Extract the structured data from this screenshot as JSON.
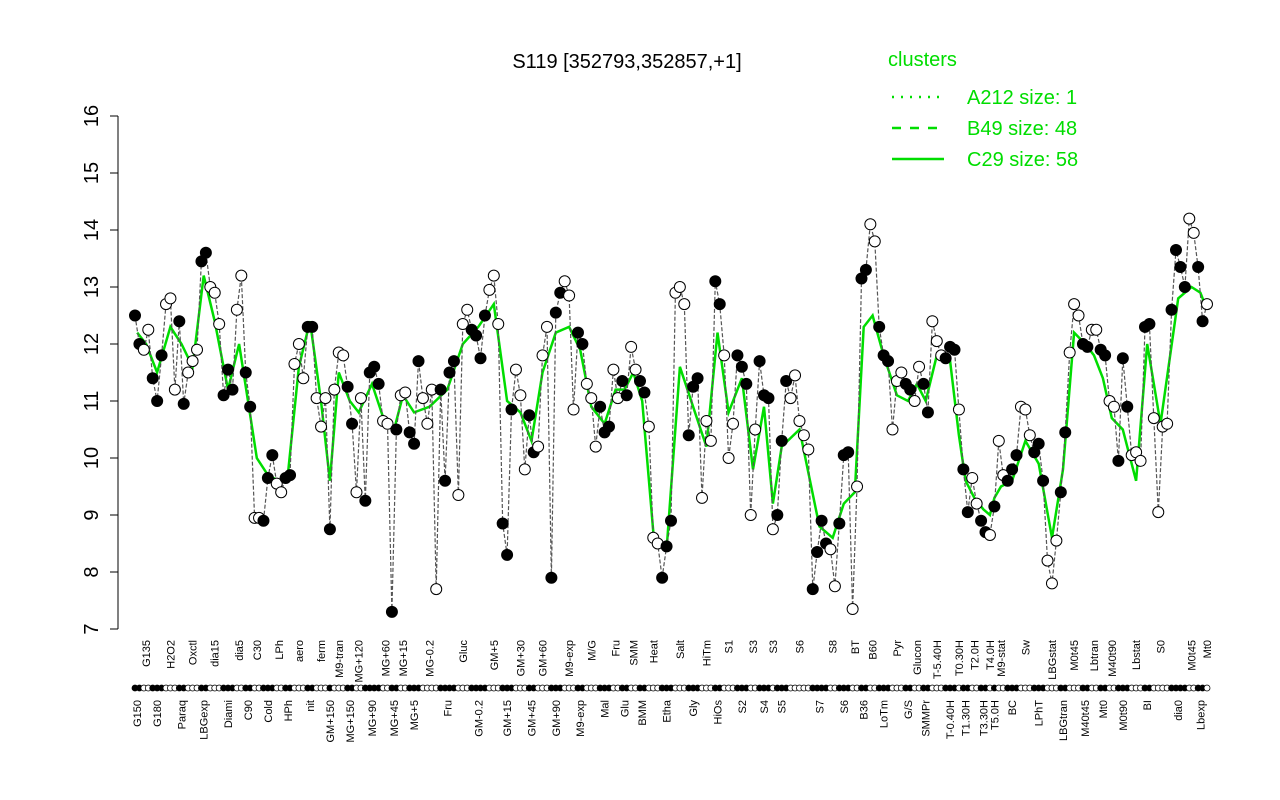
{
  "chart_data": {
    "type": "line",
    "title": "S119 [352793,352857,+1]",
    "ylim": [
      7,
      16
    ],
    "yticks": [
      7,
      8,
      9,
      10,
      11,
      12,
      13,
      14,
      15,
      16
    ],
    "marker_colors": [
      "#000000",
      "#ffffff"
    ],
    "line_color": "#00dd00",
    "legend": {
      "title": "clusters",
      "position": "top-right",
      "entries": [
        {
          "label": "A212 size: 1",
          "style": "dotted"
        },
        {
          "label": "B49 size: 48",
          "style": "dashed"
        },
        {
          "label": "C29 size: 58",
          "style": "solid"
        }
      ]
    },
    "groups": [
      {
        "label": "G150",
        "values": [
          12.5,
          12.0
        ],
        "level": 12.2
      },
      {
        "label": "G135",
        "values": [
          11.9,
          12.25
        ],
        "level": 12.0
      },
      {
        "label": "G180",
        "values": [
          11.4,
          11.0,
          11.8
        ],
        "level": 11.5
      },
      {
        "label": "H2O2",
        "values": [
          12.7,
          12.8,
          11.2
        ],
        "level": 12.3
      },
      {
        "label": "Paraq",
        "values": [
          12.4,
          10.95
        ],
        "level": 12.0
      },
      {
        "label": "Oxctl",
        "values": [
          11.5,
          11.7,
          11.9
        ],
        "level": 11.6
      },
      {
        "label": "LBGexp",
        "values": [
          13.45,
          13.6
        ],
        "level": 13.2
      },
      {
        "label": "dia15",
        "values": [
          13.0,
          12.9,
          12.35
        ],
        "level": 12.4
      },
      {
        "label": "Diami",
        "values": [
          11.1,
          11.55,
          11.2
        ],
        "level": 11.2
      },
      {
        "label": "dia5",
        "values": [
          12.6,
          13.2
        ],
        "level": 12.0
      },
      {
        "label": "C90",
        "values": [
          11.5,
          10.9
        ],
        "level": 11.0
      },
      {
        "label": "C30",
        "values": [
          8.95,
          8.95
        ],
        "level": 10.0
      },
      {
        "label": "Cold",
        "values": [
          8.9,
          9.65,
          10.05
        ],
        "level": 9.7
      },
      {
        "label": "LPh",
        "values": [
          9.55,
          9.4
        ],
        "level": 9.6
      },
      {
        "label": "HPh",
        "values": [
          9.65,
          9.7
        ],
        "level": 9.7
      },
      {
        "label": "aero",
        "values": [
          11.65,
          12.0,
          11.4
        ],
        "level": 11.6
      },
      {
        "label": "nit",
        "values": [
          12.3,
          12.3
        ],
        "level": 12.4
      },
      {
        "label": "ferm",
        "values": [
          11.05,
          10.55,
          11.05
        ],
        "level": 11.0
      },
      {
        "label": "GM+150",
        "values": [
          8.75
        ],
        "level": 9.6
      },
      {
        "label": "M9-tran",
        "values": [
          11.2,
          11.85,
          11.8
        ],
        "level": 11.5
      },
      {
        "label": "MG+150",
        "values": [
          11.25,
          10.6
        ],
        "level": 11.0
      },
      {
        "label": "MG+120",
        "values": [
          9.4,
          11.05
        ],
        "level": 10.8
      },
      {
        "label": "MG+90",
        "values": [
          9.25,
          11.5,
          11.6,
          11.3
        ],
        "level": 11.3
      },
      {
        "label": "MG+60",
        "values": [
          10.65,
          10.6
        ],
        "level": 10.6
      },
      {
        "label": "MG+45",
        "values": [
          7.3,
          10.5
        ],
        "level": 10.5
      },
      {
        "label": "MG+15",
        "values": [
          11.1,
          11.15
        ],
        "level": 11.1
      },
      {
        "label": "MG+5",
        "values": [
          10.45,
          10.25,
          11.7
        ],
        "level": 10.8
      },
      {
        "label": "MG-0.2",
        "values": [
          11.05,
          10.6,
          11.2,
          7.7
        ],
        "level": 10.9
      },
      {
        "label": "Fru",
        "values": [
          11.2,
          9.6,
          11.5,
          11.7
        ],
        "level": 11.2
      },
      {
        "label": "Gluc",
        "values": [
          9.35,
          12.35,
          12.6
        ],
        "level": 12.0
      },
      {
        "label": "GM-0.2",
        "values": [
          12.25,
          12.15,
          11.75,
          12.5
        ],
        "level": 12.3
      },
      {
        "label": "GM+5",
        "values": [
          12.95,
          13.2,
          12.35
        ],
        "level": 12.7
      },
      {
        "label": "GM+15",
        "values": [
          8.85,
          8.3,
          10.85
        ],
        "level": 11.0
      },
      {
        "label": "GM+30",
        "values": [
          11.55,
          11.1,
          9.8
        ],
        "level": 10.8
      },
      {
        "label": "GM+45",
        "values": [
          10.75,
          10.1
        ],
        "level": 10.3
      },
      {
        "label": "GM+60",
        "values": [
          10.2,
          11.8,
          12.3
        ],
        "level": 11.5
      },
      {
        "label": "GM+90",
        "values": [
          7.9,
          12.55,
          12.9
        ],
        "level": 12.2
      },
      {
        "label": "M9-exp",
        "values": [
          13.1,
          12.85,
          10.85
        ],
        "level": 12.3
      },
      {
        "label": "M9-exp",
        "values": [
          12.2,
          12.0
        ],
        "level": 11.9
      },
      {
        "label": "M/G",
        "values": [
          11.3,
          11.05,
          10.2
        ],
        "level": 10.9
      },
      {
        "label": "Mal",
        "values": [
          10.9,
          10.45,
          10.55
        ],
        "level": 10.6
      },
      {
        "label": "Fru",
        "values": [
          11.55,
          11.05
        ],
        "level": 11.2
      },
      {
        "label": "Glu",
        "values": [
          11.35,
          11.1
        ],
        "level": 11.2
      },
      {
        "label": "SMM",
        "values": [
          11.95,
          11.55
        ],
        "level": 11.5
      },
      {
        "label": "BMM",
        "values": [
          11.35,
          11.15
        ],
        "level": 11.0
      },
      {
        "label": "Heat",
        "values": [
          10.55,
          8.6,
          8.5
        ],
        "level": 8.7
      },
      {
        "label": "Etha",
        "values": [
          7.9,
          8.45,
          8.9
        ],
        "level": 8.4
      },
      {
        "label": "Salt",
        "values": [
          12.9,
          13.0,
          12.7
        ],
        "level": 11.6
      },
      {
        "label": "Gly",
        "values": [
          10.4,
          11.25,
          11.4
        ],
        "level": 10.9
      },
      {
        "label": "HiTm",
        "values": [
          9.3,
          10.65,
          10.3
        ],
        "level": 10.2
      },
      {
        "label": "HiOs",
        "values": [
          13.1,
          12.7
        ],
        "level": 12.2
      },
      {
        "label": "S1",
        "values": [
          11.8,
          10.0,
          10.6
        ],
        "level": 10.8
      },
      {
        "label": "S2",
        "values": [
          11.8,
          11.6,
          11.3
        ],
        "level": 11.4
      },
      {
        "label": "S3",
        "values": [
          9.0,
          10.5
        ],
        "level": 9.8
      },
      {
        "label": "S4",
        "values": [
          11.7,
          11.1,
          11.05
        ],
        "level": 10.9
      },
      {
        "label": "S3",
        "values": [
          8.75
        ],
        "level": 9.2
      },
      {
        "label": "S5",
        "values": [
          9.0,
          10.3,
          11.35
        ],
        "level": 10.2
      },
      {
        "label": "S6",
        "values": [
          11.05,
          11.45,
          10.65,
          10.4,
          10.15
        ],
        "level": 10.5
      },
      {
        "label": "S7",
        "values": [
          7.7,
          8.35,
          8.9,
          8.5
        ],
        "level": 8.8
      },
      {
        "label": "S8",
        "values": [
          8.4,
          7.75
        ],
        "level": 8.6
      },
      {
        "label": "S6",
        "values": [
          8.85,
          10.05,
          10.1
        ],
        "level": 9.2
      },
      {
        "label": "BT",
        "values": [
          7.35,
          9.5
        ],
        "level": 9.4
      },
      {
        "label": "B36",
        "values": [
          13.15,
          13.3
        ],
        "level": 12.3
      },
      {
        "label": "B60",
        "values": [
          14.1,
          13.8
        ],
        "level": 12.5
      },
      {
        "label": "LoTm",
        "values": [
          12.3,
          11.8,
          11.7
        ],
        "level": 11.8
      },
      {
        "label": "Pyr",
        "values": [
          10.5,
          11.35,
          11.5
        ],
        "level": 11.1
      },
      {
        "label": "G/S",
        "values": [
          11.3,
          11.2
        ],
        "level": 11.0
      },
      {
        "label": "Glucon",
        "values": [
          11.0,
          11.6
        ],
        "level": 11.3
      },
      {
        "label": "SMMPr",
        "values": [
          11.3,
          10.8
        ],
        "level": 11.0
      },
      {
        "label": "T-5.40H",
        "values": [
          12.4,
          12.05,
          11.8
        ],
        "level": 11.8
      },
      {
        "label": "T-0.40H",
        "values": [
          11.75,
          11.95,
          11.9
        ],
        "level": 11.7
      },
      {
        "label": "T0.30H",
        "values": [
          10.85
        ],
        "level": 10.4
      },
      {
        "label": "T1.30H",
        "values": [
          9.8,
          9.05
        ],
        "level": 9.6
      },
      {
        "label": "T2.0H",
        "values": [
          9.65,
          9.2
        ],
        "level": 9.3
      },
      {
        "label": "T3.30H",
        "values": [
          8.9,
          8.7
        ],
        "level": 9.1
      },
      {
        "label": "T4.0H",
        "values": [
          8.65
        ],
        "level": 9.0
      },
      {
        "label": "T5.0H",
        "values": [
          9.15
        ],
        "level": 9.3
      },
      {
        "label": "M9-stat",
        "values": [
          10.3,
          9.7
        ],
        "level": 9.5
      },
      {
        "label": "BC",
        "values": [
          9.6,
          9.8,
          10.05
        ],
        "level": 9.6
      },
      {
        "label": "Sw",
        "values": [
          10.9,
          10.85,
          10.4
        ],
        "level": 10.3
      },
      {
        "label": "LPhT",
        "values": [
          10.1,
          10.25,
          9.6
        ],
        "level": 9.9
      },
      {
        "label": "LBGstat",
        "values": [
          8.2,
          7.8,
          8.55
        ],
        "level": 8.6
      },
      {
        "label": "LBGtran",
        "values": [
          9.4,
          10.45
        ],
        "level": 9.8
      },
      {
        "label": "M0t45",
        "values": [
          11.85,
          12.7,
          12.5
        ],
        "level": 12.2
      },
      {
        "label": "M40t45",
        "values": [
          12.0,
          11.95
        ],
        "level": 12.0
      },
      {
        "label": "Lbtran",
        "values": [
          12.25,
          12.25
        ],
        "level": 11.8
      },
      {
        "label": "Mt0",
        "values": [
          11.9,
          11.8
        ],
        "level": 11.4
      },
      {
        "label": "M40t90",
        "values": [
          11.0,
          10.9
        ],
        "level": 10.7
      },
      {
        "label": "M0t90",
        "values": [
          9.95,
          11.75,
          10.9
        ],
        "level": 10.5
      },
      {
        "label": "Lbstat",
        "values": [
          10.05,
          10.1,
          9.95
        ],
        "level": 9.6
      },
      {
        "label": "BI",
        "values": [
          12.3,
          12.35
        ],
        "level": 12.0
      },
      {
        "label": "S0",
        "values": [
          10.7,
          9.05,
          10.55,
          10.6
        ],
        "level": 10.6
      },
      {
        "label": "dia0",
        "values": [
          12.6,
          13.65,
          13.35,
          13.0
        ],
        "level": 12.8
      },
      {
        "label": "M0t45",
        "values": [
          14.2,
          13.95
        ],
        "level": 13.0
      },
      {
        "label": "Lbexp",
        "values": [
          13.35,
          12.4
        ],
        "level": 12.9
      },
      {
        "label": "Mt0",
        "values": [
          12.7
        ],
        "level": 12.6
      }
    ]
  }
}
